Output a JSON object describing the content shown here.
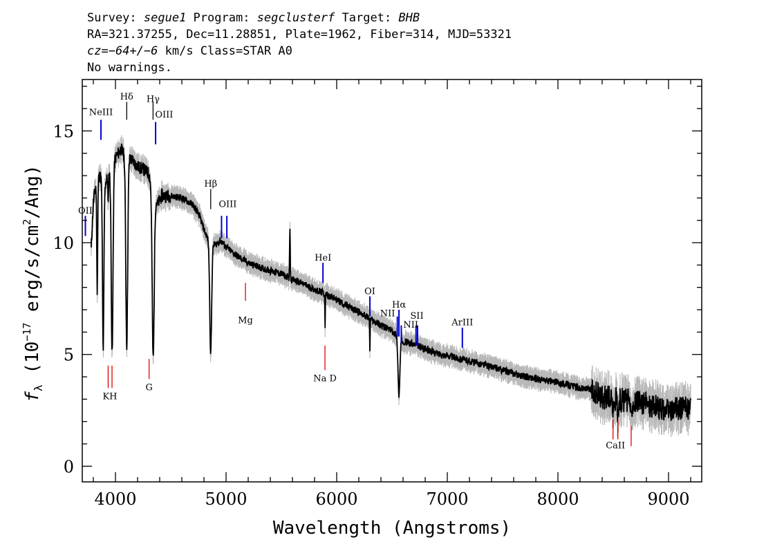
{
  "header": {
    "line1": {
      "survey_label": "Survey: ",
      "survey": "segue1",
      "program_label": " Program: ",
      "program": "segclusterf",
      "target_label": " Target: ",
      "target": "BHB"
    },
    "line2": "RA=321.37255, Dec=11.28851, Plate=1962, Fiber=314, MJD=53321",
    "line3": {
      "cz_label": "cz=",
      "cz": "−64+/−6",
      "rest": " km/s Class=STAR A0"
    },
    "line4": "No warnings."
  },
  "chart_data": {
    "type": "line",
    "xlabel": "Wavelength (Angstroms)",
    "ylabel": "f_λ (10^-17 erg/s/cm^2/Ang)",
    "ylabel_parts": {
      "symbol": "f",
      "sub": "λ",
      "pre": " (10",
      "exp1": "−17",
      "mid": " erg/s/cm",
      "exp2": "2",
      "post": "/Ang)"
    },
    "xlim": [
      3700,
      9300
    ],
    "ylim": [
      -0.7,
      17.3
    ],
    "xticks": [
      4000,
      5000,
      6000,
      7000,
      8000,
      9000
    ],
    "yticks": [
      0,
      5,
      10,
      15
    ],
    "colors": {
      "flux": "#000000",
      "error": "#b8b8b8",
      "emission": "#0000d0",
      "absorption": "#e00000",
      "balmer": "#000000"
    },
    "continuum": [
      [
        3780,
        9.7
      ],
      [
        3800,
        11.8
      ],
      [
        3830,
        12.8
      ],
      [
        3860,
        13.0
      ],
      [
        3900,
        12.6
      ],
      [
        3950,
        13.1
      ],
      [
        4000,
        13.8
      ],
      [
        4050,
        14.2
      ],
      [
        4080,
        13.9
      ],
      [
        4150,
        13.7
      ],
      [
        4200,
        13.4
      ],
      [
        4250,
        13.3
      ],
      [
        4300,
        13.1
      ],
      [
        4330,
        12.6
      ],
      [
        4380,
        11.7
      ],
      [
        4420,
        12.1
      ],
      [
        4500,
        12.1
      ],
      [
        4600,
        12.0
      ],
      [
        4700,
        11.7
      ],
      [
        4760,
        11.2
      ],
      [
        4800,
        10.6
      ],
      [
        4850,
        10.0
      ],
      [
        4900,
        9.9
      ],
      [
        4950,
        10.1
      ],
      [
        5000,
        9.8
      ],
      [
        5100,
        9.4
      ],
      [
        5200,
        9.1
      ],
      [
        5300,
        8.9
      ],
      [
        5400,
        8.75
      ],
      [
        5500,
        8.6
      ],
      [
        5600,
        8.35
      ],
      [
        5700,
        8.15
      ],
      [
        5800,
        7.9
      ],
      [
        5900,
        7.7
      ],
      [
        6000,
        7.45
      ],
      [
        6100,
        7.15
      ],
      [
        6200,
        6.9
      ],
      [
        6300,
        6.6
      ],
      [
        6400,
        6.3
      ],
      [
        6500,
        6.05
      ],
      [
        6600,
        5.6
      ],
      [
        6700,
        5.45
      ],
      [
        6800,
        5.25
      ],
      [
        6900,
        5.05
      ],
      [
        7000,
        4.95
      ],
      [
        7200,
        4.7
      ],
      [
        7400,
        4.45
      ],
      [
        7600,
        4.15
      ],
      [
        7800,
        3.9
      ],
      [
        8000,
        3.75
      ],
      [
        8200,
        3.5
      ],
      [
        8300,
        3.4
      ],
      [
        8400,
        3.1
      ],
      [
        8600,
        2.95
      ],
      [
        8800,
        2.8
      ],
      [
        9000,
        2.45
      ],
      [
        9100,
        2.6
      ],
      [
        9200,
        2.55
      ]
    ],
    "absorption_features": [
      {
        "x": 3835,
        "depth": 4.9,
        "width": 6
      },
      {
        "x": 3889,
        "depth": 7.5,
        "width": 9
      },
      {
        "x": 3934,
        "depth": 1.5,
        "width": 3
      },
      {
        "x": 3970,
        "depth": 8.4,
        "width": 11
      },
      {
        "x": 4102,
        "depth": 8.4,
        "width": 12
      },
      {
        "x": 4341,
        "depth": 7.6,
        "width": 13
      },
      {
        "x": 4861,
        "depth": 4.9,
        "width": 12
      },
      {
        "x": 5895,
        "depth": 1.4,
        "width": 3
      },
      {
        "x": 6300,
        "depth": 1.4,
        "width": 3
      },
      {
        "x": 6563,
        "depth": 2.6,
        "width": 12
      },
      {
        "x": 8498,
        "depth": 0.7,
        "width": 6
      },
      {
        "x": 8542,
        "depth": 0.9,
        "width": 6
      },
      {
        "x": 8662,
        "depth": 0.9,
        "width": 6
      }
    ],
    "spikes": [
      {
        "x": 5577,
        "height": 2.3,
        "width": 4
      }
    ],
    "line_markers": [
      {
        "label": "OII",
        "x": 3728,
        "kind": "emission",
        "y0": 10.3,
        "y1": 11.2
      },
      {
        "label": "NeIII",
        "x": 3869,
        "kind": "emission",
        "y0": 14.6,
        "y1": 15.5
      },
      {
        "label": "Hδ",
        "x": 4102,
        "kind": "balmer",
        "y0": 15.5,
        "y1": 16.3
      },
      {
        "label": "Hγ",
        "x": 4340,
        "kind": "balmer",
        "y0": 15.5,
        "y1": 16.3
      },
      {
        "label": "OIII",
        "x": 4363,
        "kind": "emission",
        "y0": 14.4,
        "y1": 15.4
      },
      {
        "label": "Hβ",
        "x": 4861,
        "kind": "balmer",
        "y0": 11.5,
        "y1": 12.4
      },
      {
        "label": "OIII",
        "x": 4959,
        "kind": "emission",
        "y0": 10.2,
        "y1": 11.2
      },
      {
        "label": "OIII2",
        "x": 5007,
        "kind": "emission",
        "y0": 10.2,
        "y1": 11.2
      },
      {
        "label": "HeI",
        "x": 5876,
        "kind": "emission",
        "y0": 8.2,
        "y1": 9.1
      },
      {
        "label": "OI",
        "x": 6300,
        "kind": "emission",
        "y0": 6.7,
        "y1": 7.6
      },
      {
        "label": "NII",
        "x": 6548,
        "kind": "emission",
        "y0": 5.8,
        "y1": 6.7
      },
      {
        "label": "Hα",
        "x": 6563,
        "kind": "emission",
        "y0": 5.8,
        "y1": 7.0
      },
      {
        "label": "NII2",
        "x": 6584,
        "kind": "emission",
        "y0": 5.5,
        "y1": 6.3
      },
      {
        "label": "SII",
        "x": 6717,
        "kind": "emission",
        "y0": 5.4,
        "y1": 6.3
      },
      {
        "label": "SII2",
        "x": 6731,
        "kind": "emission",
        "y0": 5.4,
        "y1": 6.3
      },
      {
        "label": "ArIII",
        "x": 7136,
        "kind": "emission",
        "y0": 5.3,
        "y1": 6.2
      },
      {
        "label": "K",
        "x": 3934,
        "kind": "absorption",
        "y0": 3.5,
        "y1": 4.5
      },
      {
        "label": "H",
        "x": 3969,
        "kind": "absorption",
        "y0": 3.5,
        "y1": 4.5
      },
      {
        "label": "G",
        "x": 4304,
        "kind": "absorption",
        "y0": 3.9,
        "y1": 4.8
      },
      {
        "label": "Mg",
        "x": 5175,
        "kind": "absorption",
        "y0": 7.4,
        "y1": 8.2
      },
      {
        "label": "Na",
        "x": 5894,
        "kind": "absorption",
        "y0": 4.3,
        "y1": 5.4
      },
      {
        "label": "CaII1",
        "x": 8498,
        "kind": "absorption",
        "y0": 1.2,
        "y1": 2.1
      },
      {
        "label": "CaII2",
        "x": 8542,
        "kind": "absorption",
        "y0": 1.2,
        "y1": 2.1
      },
      {
        "label": "CaII3",
        "x": 8662,
        "kind": "absorption",
        "y0": 0.9,
        "y1": 1.8
      }
    ],
    "annotations": [
      {
        "text": "OII",
        "x": 3728,
        "y": 11.3
      },
      {
        "text": "NeIII",
        "x": 3869,
        "y": 15.7
      },
      {
        "text": "Hδ",
        "x": 4102,
        "y": 16.4
      },
      {
        "text": "Hγ",
        "x": 4340,
        "y": 16.3
      },
      {
        "text": "OIII",
        "x": 4440,
        "y": 15.6
      },
      {
        "text": "Hβ",
        "x": 4861,
        "y": 12.5
      },
      {
        "text": "OIII",
        "x": 5015,
        "y": 11.6
      },
      {
        "text": "HeI",
        "x": 5876,
        "y": 9.2
      },
      {
        "text": "OI",
        "x": 6300,
        "y": 7.7
      },
      {
        "text": "Hα",
        "x": 6563,
        "y": 7.1
      },
      {
        "text": "NII",
        "x": 6460,
        "y": 6.7
      },
      {
        "text": "NII",
        "x": 6670,
        "y": 6.2
      },
      {
        "text": "SII",
        "x": 6725,
        "y": 6.6
      },
      {
        "text": "ArIII",
        "x": 7136,
        "y": 6.3
      },
      {
        "text": "KH",
        "x": 3950,
        "y": 3.0
      },
      {
        "text": "G",
        "x": 4304,
        "y": 3.4
      },
      {
        "text": "Mg",
        "x": 5175,
        "y": 6.4
      },
      {
        "text": "Na  D",
        "x": 5894,
        "y": 3.8
      },
      {
        "text": "CaII",
        "x": 8520,
        "y": 0.8
      }
    ]
  }
}
